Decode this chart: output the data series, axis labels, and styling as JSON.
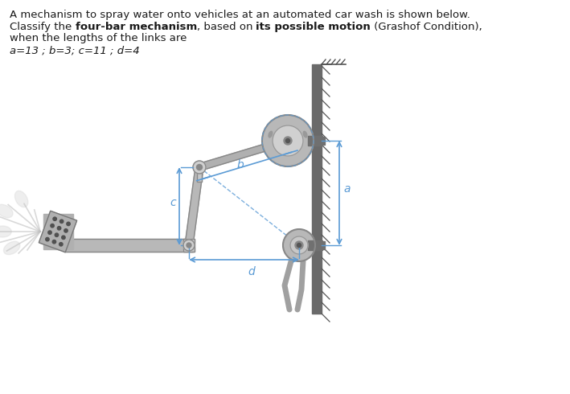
{
  "bg_color": "#ffffff",
  "text_line1": "A mechanism to spray water onto vehicles at an automated car wash is shown below.",
  "text_line2_plain": "Classify the ",
  "text_line2_bold1": "four-bar mechanism",
  "text_line2_plain2": ", based on ",
  "text_line2_bold2": "its possible motion",
  "text_line2_plain3": " (Grashof Condition),",
  "text_line3": "when the lengths of the links are",
  "text_line4": "a=13 ; b=3; c=11 ; d=4",
  "fig_width": 7.09,
  "fig_height": 4.9,
  "dpi": 100,
  "text_color": "#1a1a1a",
  "blue_color": "#5b9bd5",
  "gray_light": "#c8c8c8",
  "gray_mid": "#a0a0a0",
  "gray_dark": "#606060",
  "wall_color": "#5a5a5a",
  "mechanism_fill": "#b8b8b8",
  "mechanism_edge": "#888888"
}
